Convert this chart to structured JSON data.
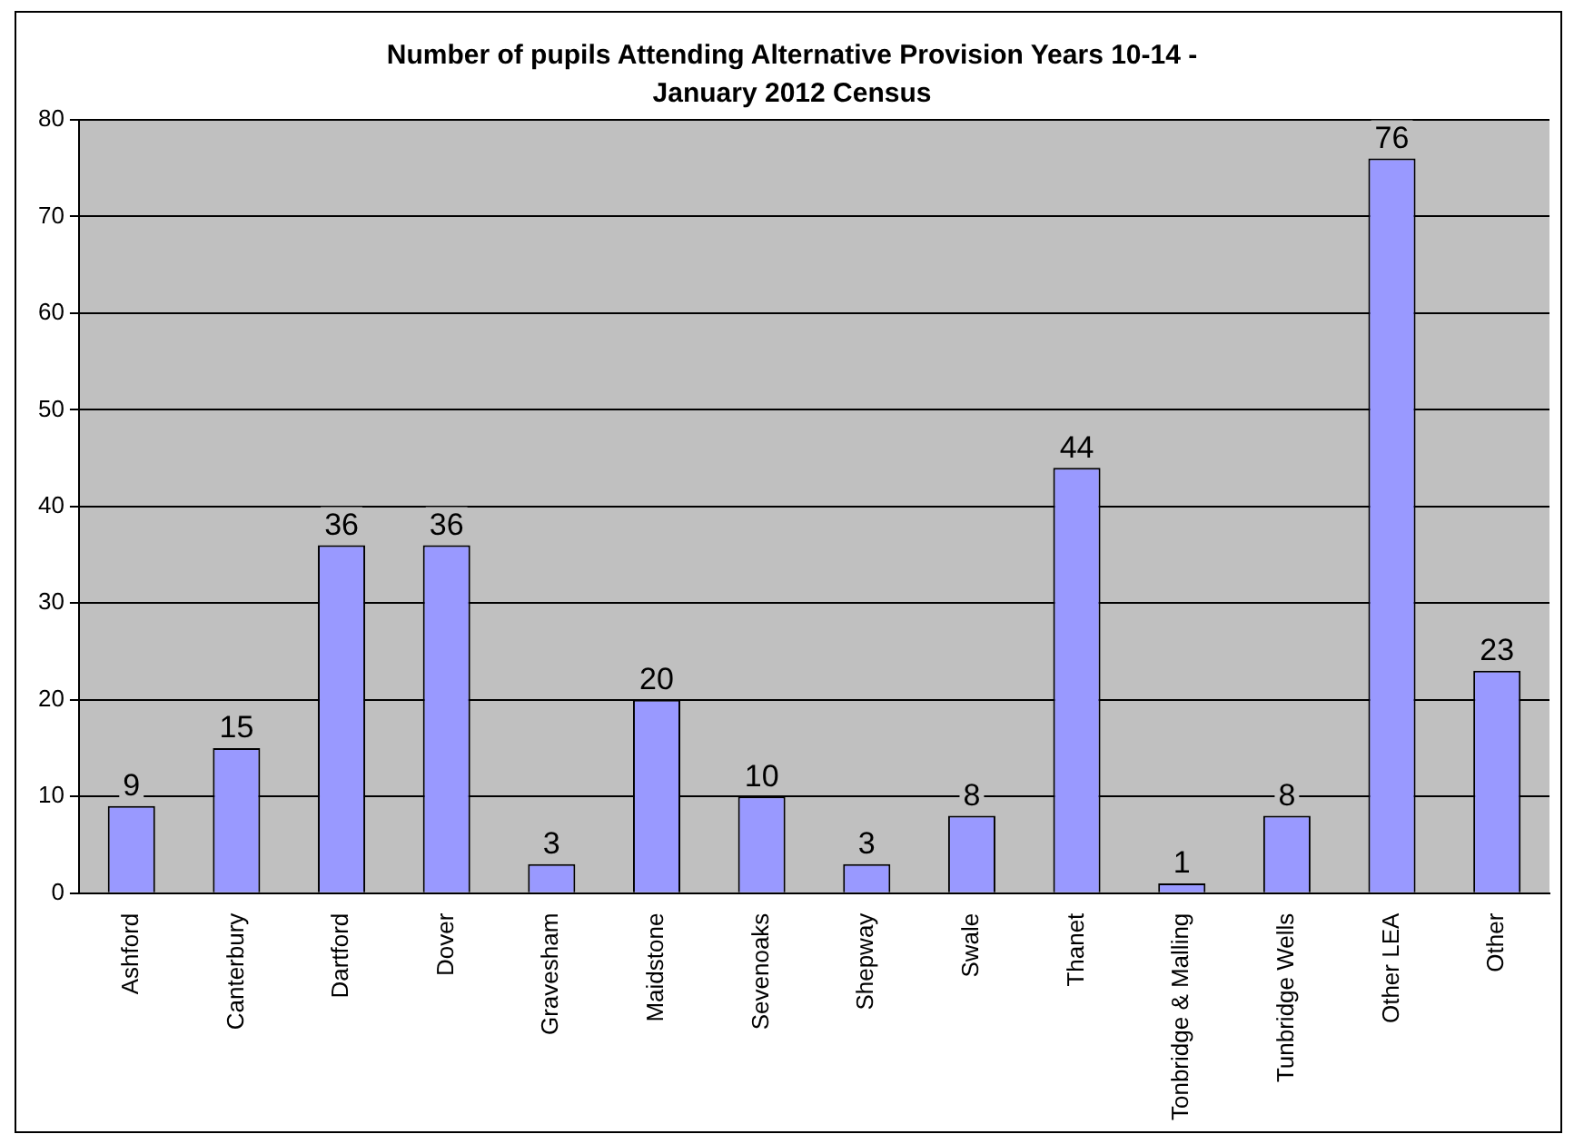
{
  "chart_data": {
    "type": "bar",
    "title": "Number of pupils Attending Alternative Provision Years 10-14 - January 2012 Census",
    "categories": [
      "Ashford",
      "Canterbury",
      "Dartford",
      "Dover",
      "Gravesham",
      "Maidstone",
      "Sevenoaks",
      "Shepway",
      "Swale",
      "Thanet",
      "Tonbridge & Malling",
      "Tunbridge Wells",
      "Other LEA",
      "Other"
    ],
    "values": [
      9,
      15,
      36,
      36,
      3,
      20,
      10,
      3,
      8,
      44,
      1,
      8,
      76,
      23
    ],
    "color": "#9999ff",
    "ylim": [
      0,
      80
    ],
    "yticks": [
      0,
      10,
      20,
      30,
      40,
      50,
      60,
      70,
      80
    ],
    "grid": "y",
    "legend": false,
    "data_labels": true
  }
}
